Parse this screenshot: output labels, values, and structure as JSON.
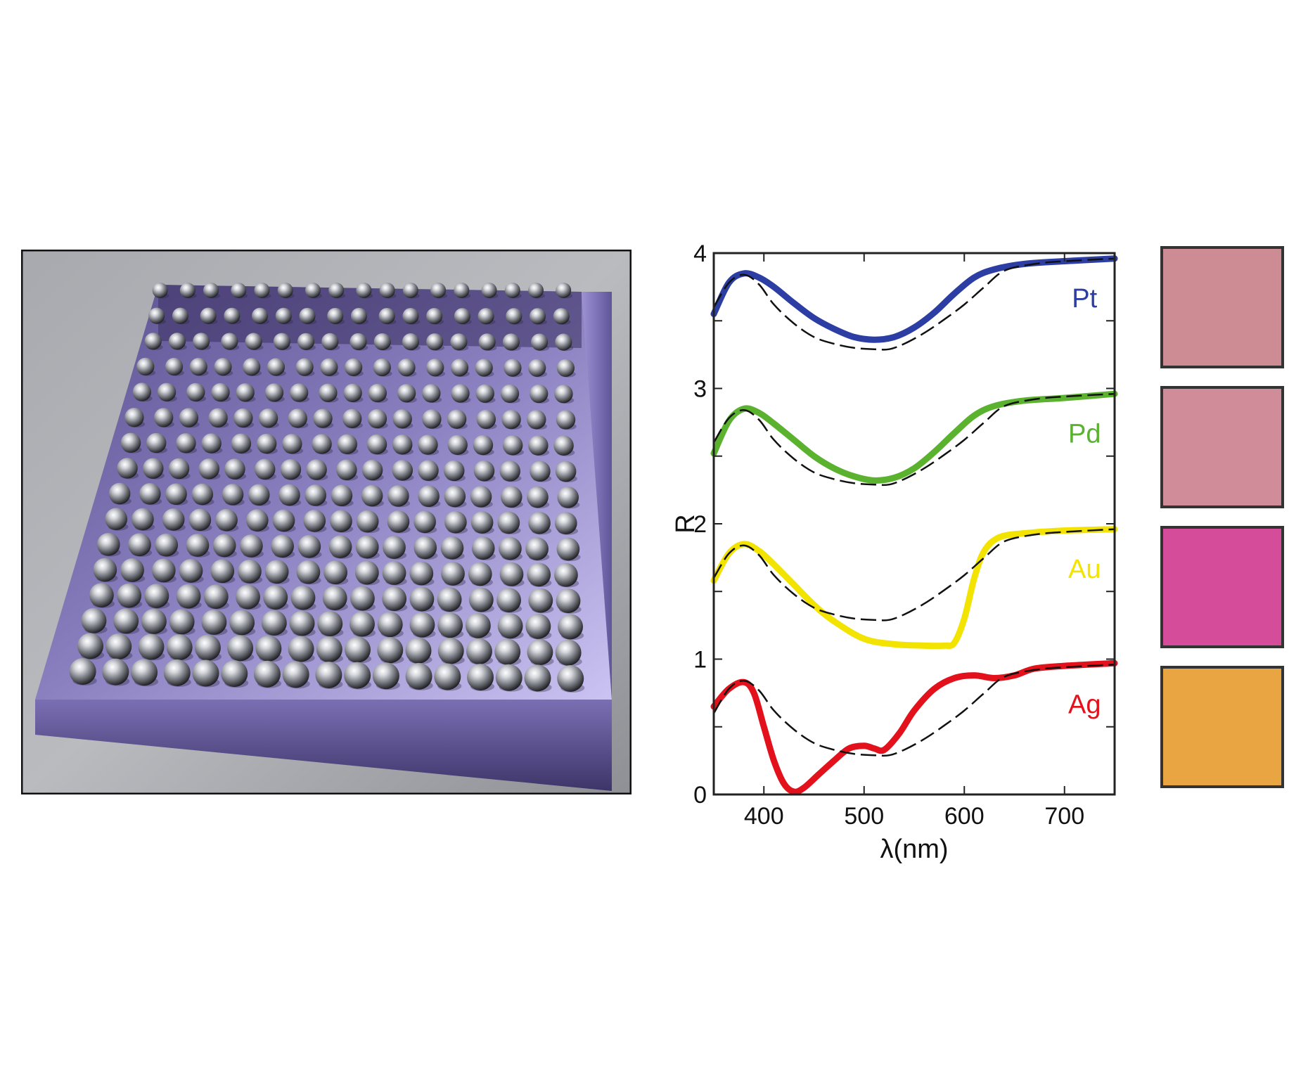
{
  "render_image": {
    "description_name": "metal-nanosphere-array-render",
    "grid_rows": 16,
    "grid_cols": 17,
    "colors": {
      "frame": "#111111",
      "background": "#9a9ca3",
      "slab": "#6a5fa0",
      "slab_light": "#c9bff0",
      "sphere": "#b9bcc2"
    }
  },
  "chart_data": {
    "type": "line",
    "title": "",
    "xlabel": "λ(nm)",
    "ylabel": "R",
    "xlim": [
      350,
      750
    ],
    "ylim": [
      0,
      4
    ],
    "xticks": [
      400,
      500,
      600,
      700
    ],
    "xtick_labels": [
      "400",
      "500",
      "600",
      "700"
    ],
    "yticks": [
      0,
      1,
      2,
      3,
      4
    ],
    "ytick_labels": [
      "0",
      "1",
      "2",
      "3",
      "4"
    ],
    "grid": false,
    "series": [
      {
        "name": "Pt",
        "color": "#2c3ea3",
        "offset": 3,
        "x": [
          350,
          365,
          380,
          395,
          410,
          430,
          450,
          470,
          490,
          510,
          530,
          550,
          570,
          590,
          610,
          630,
          660,
          700,
          750
        ],
        "y": [
          0.55,
          0.78,
          0.85,
          0.82,
          0.75,
          0.63,
          0.52,
          0.44,
          0.38,
          0.36,
          0.38,
          0.45,
          0.56,
          0.7,
          0.82,
          0.88,
          0.92,
          0.94,
          0.96
        ]
      },
      {
        "name": "Pd",
        "color": "#5ab22f",
        "offset": 2,
        "x": [
          350,
          365,
          380,
          395,
          410,
          430,
          450,
          470,
          490,
          510,
          530,
          550,
          570,
          590,
          610,
          630,
          660,
          700,
          750
        ],
        "y": [
          0.52,
          0.76,
          0.85,
          0.82,
          0.74,
          0.62,
          0.5,
          0.41,
          0.35,
          0.32,
          0.34,
          0.41,
          0.53,
          0.67,
          0.8,
          0.87,
          0.91,
          0.93,
          0.96
        ]
      },
      {
        "name": "Au",
        "color": "#f2e300",
        "offset": 1,
        "x": [
          350,
          365,
          380,
          395,
          410,
          430,
          450,
          470,
          500,
          530,
          560,
          580,
          590,
          600,
          610,
          620,
          635,
          660,
          700,
          750
        ],
        "y": [
          0.58,
          0.78,
          0.85,
          0.8,
          0.7,
          0.55,
          0.4,
          0.28,
          0.15,
          0.11,
          0.1,
          0.1,
          0.12,
          0.3,
          0.6,
          0.8,
          0.9,
          0.93,
          0.95,
          0.96
        ]
      },
      {
        "name": "Ag",
        "color": "#e3111b",
        "offset": 0,
        "x": [
          350,
          365,
          380,
          390,
          400,
          410,
          420,
          430,
          440,
          455,
          470,
          485,
          500,
          510,
          520,
          535,
          550,
          570,
          590,
          610,
          630,
          650,
          670,
          700,
          750
        ],
        "y": [
          0.65,
          0.78,
          0.83,
          0.75,
          0.5,
          0.25,
          0.08,
          0.02,
          0.05,
          0.15,
          0.25,
          0.34,
          0.36,
          0.34,
          0.33,
          0.45,
          0.62,
          0.78,
          0.86,
          0.88,
          0.86,
          0.88,
          0.93,
          0.95,
          0.97
        ]
      },
      {
        "name": "reference",
        "color": "#111111",
        "dashed": true,
        "offsets": [
          0,
          1,
          2,
          3
        ],
        "x": [
          350,
          365,
          380,
          395,
          410,
          430,
          450,
          470,
          490,
          510,
          525,
          540,
          560,
          580,
          600,
          620,
          640,
          670,
          700,
          750
        ],
        "y": [
          0.6,
          0.78,
          0.84,
          0.77,
          0.62,
          0.48,
          0.38,
          0.33,
          0.3,
          0.29,
          0.29,
          0.33,
          0.41,
          0.51,
          0.62,
          0.75,
          0.87,
          0.92,
          0.94,
          0.96
        ]
      }
    ],
    "series_labels": [
      "Pt",
      "Pd",
      "Au",
      "Ag"
    ]
  },
  "swatches": [
    {
      "name": "Pt",
      "color": "#cd8b94"
    },
    {
      "name": "Pd",
      "color": "#d08c98"
    },
    {
      "name": "Au",
      "color": "#d44c9a"
    },
    {
      "name": "Ag",
      "color": "#e8a542"
    }
  ]
}
